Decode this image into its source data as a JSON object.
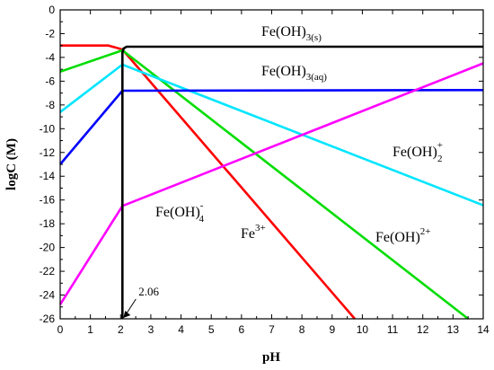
{
  "chart_data": {
    "type": "line",
    "title": "",
    "xlabel": "pH",
    "ylabel": "logC  (M)",
    "xlim": [
      0,
      14
    ],
    "ylim": [
      -26,
      0
    ],
    "xticks": [
      0,
      1,
      2,
      3,
      4,
      5,
      6,
      7,
      8,
      9,
      10,
      11,
      12,
      13,
      14
    ],
    "yticks": [
      0,
      -2,
      -4,
      -6,
      -8,
      -10,
      -12,
      -14,
      -16,
      -18,
      -20,
      -22,
      -24,
      -26
    ],
    "grid": false,
    "legend": "none",
    "series": [
      {
        "key": "fe3",
        "color": "#ff0000",
        "x": [
          0,
          1.6,
          2.06,
          9.75
        ],
        "y": [
          -3.0,
          -3.0,
          -3.33,
          -26.0
        ]
      },
      {
        "key": "feoh2",
        "color": "#00dd00",
        "x": [
          0,
          2.06,
          13.5
        ],
        "y": [
          -5.2,
          -3.4,
          -26.0
        ]
      },
      {
        "key": "feoh2p",
        "color": "#00e5ff",
        "x": [
          0,
          2.06,
          14
        ],
        "y": [
          -8.6,
          -4.6,
          -16.45
        ]
      },
      {
        "key": "feoh3aq",
        "color": "#0000ff",
        "x": [
          0,
          2.06,
          14
        ],
        "y": [
          -13.0,
          -6.8,
          -6.75
        ]
      },
      {
        "key": "feoh4",
        "color": "#ff00ff",
        "x": [
          0,
          2.06,
          14
        ],
        "y": [
          -24.8,
          -16.5,
          -4.5
        ]
      },
      {
        "key": "feoh3s",
        "color": "#000000",
        "x": [
          2.06,
          2.06,
          2.1,
          2.2,
          14
        ],
        "y": [
          -26.0,
          -3.6,
          -3.25,
          -3.1,
          -3.1
        ]
      }
    ],
    "labels": {
      "feoh3s": {
        "base": "Fe(OH)",
        "sub": "3(s)",
        "sup": ""
      },
      "feoh3aq": {
        "base": "Fe(OH)",
        "sub": "3(aq)",
        "sup": ""
      },
      "feoh2p": {
        "base": "Fe(OH)",
        "sub": "2",
        "sup": "+"
      },
      "feoh4": {
        "base": "Fe(OH)",
        "sub": "4",
        "sup": "-"
      },
      "fe3": {
        "base": "Fe",
        "sub": "",
        "sup": "3+"
      },
      "feoh2": {
        "base": "Fe(OH)",
        "sub": "",
        "sup": "2+"
      }
    },
    "annotation": {
      "text": "2.06",
      "x": 2.06,
      "y": -26.0
    }
  }
}
